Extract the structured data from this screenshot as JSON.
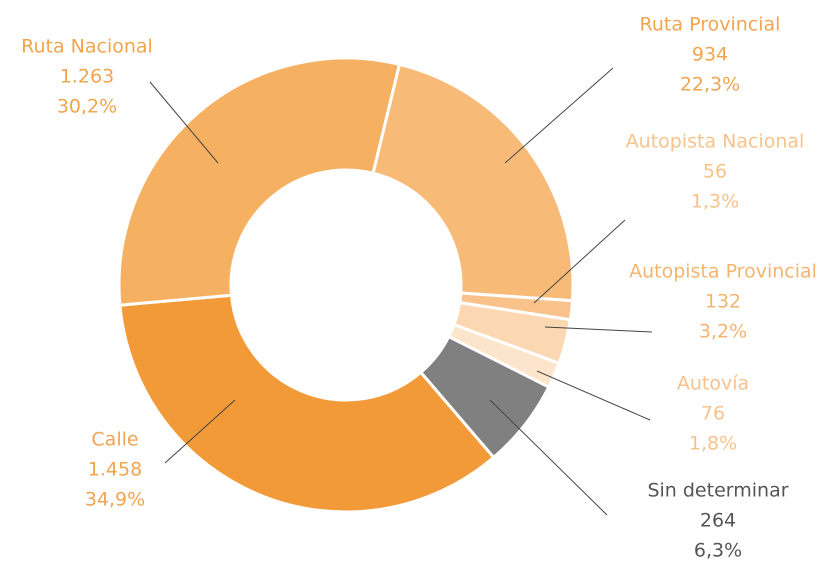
{
  "chart_data": {
    "type": "donut",
    "categories": [
      "Ruta Provincial",
      "Autopista Nacional",
      "Autopista Provincial",
      "Autovía",
      "Sin determinar",
      "Calle",
      "Ruta Nacional"
    ],
    "values": [
      934,
      56,
      132,
      76,
      264,
      1458,
      1263
    ],
    "value_labels": [
      "934",
      "56",
      "132",
      "76",
      "264",
      "1.458",
      "1.263"
    ],
    "percents": [
      22.3,
      1.3,
      3.2,
      1.8,
      6.3,
      34.9,
      30.2
    ],
    "percent_labels": [
      "22,3%",
      "1,3%",
      "3,2%",
      "1,8%",
      "6,3%",
      "34,9%",
      "30,2%"
    ],
    "colors": [
      "#f7bb77",
      "#f8c28a",
      "#fcd8b2",
      "#fde5cb",
      "#808080",
      "#f39a38",
      "#f6b062"
    ]
  }
}
